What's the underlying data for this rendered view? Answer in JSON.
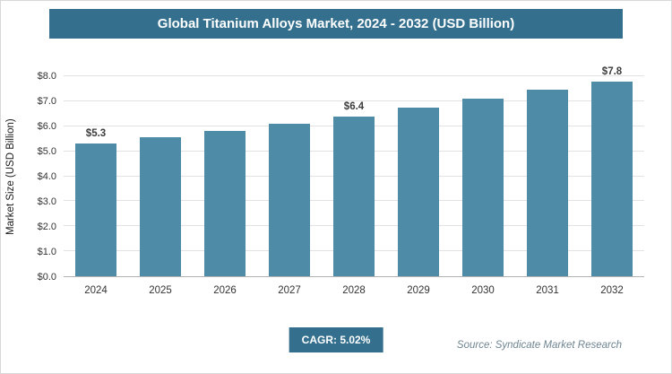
{
  "header": {
    "title": "Global Titanium Alloys Market, 2024 - 2032 (USD Billion)"
  },
  "chart_data": {
    "type": "bar",
    "title": "Global Titanium Alloys Market, 2024 - 2032 (USD Billion)",
    "xlabel": "",
    "ylabel": "Market Size (USD Billion)",
    "ylim": [
      0,
      8
    ],
    "yticks": [
      "$0.0",
      "$1.0",
      "$2.0",
      "$3.0",
      "$4.0",
      "$5.0",
      "$6.0",
      "$7.0",
      "$8.0"
    ],
    "categories": [
      "2024",
      "2025",
      "2026",
      "2027",
      "2028",
      "2029",
      "2030",
      "2031",
      "2032"
    ],
    "values": [
      5.3,
      5.55,
      5.8,
      6.1,
      6.4,
      6.75,
      7.1,
      7.45,
      7.8
    ],
    "value_labels": [
      "$5.3",
      null,
      null,
      null,
      "$6.4",
      null,
      null,
      null,
      "$7.8"
    ],
    "grid": true,
    "legend": false,
    "bar_color": "#4e8ba6"
  },
  "footer": {
    "cagr_label": "CAGR: 5.02%",
    "source": "Source: Syndicate Market Research"
  },
  "colors": {
    "accent": "#34708e",
    "bar": "#4e8ba6"
  }
}
